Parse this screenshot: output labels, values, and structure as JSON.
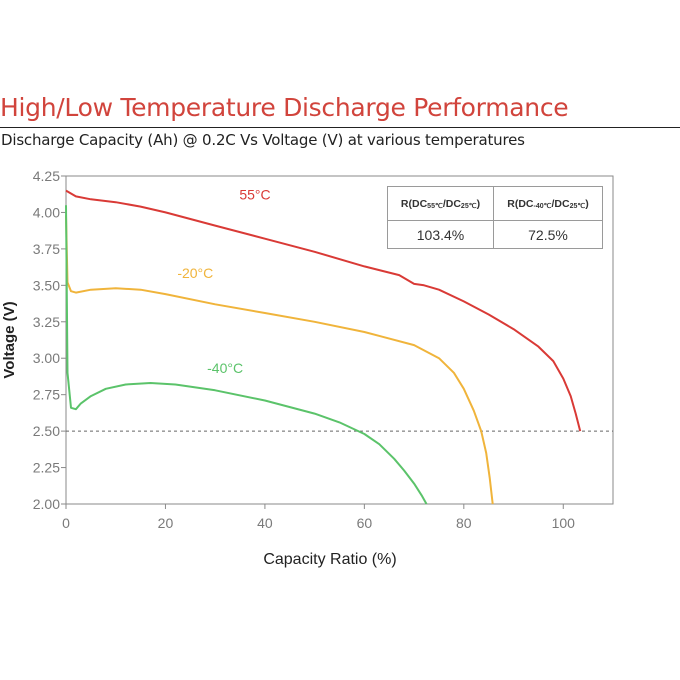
{
  "header": {
    "title": "High/Low Temperature Discharge Performance",
    "subtitle": "Discharge Capacity (Ah) @ 0.2C Vs Voltage (V) at various temperatures"
  },
  "ratio_table": {
    "headers": [
      {
        "pre": "R(DC",
        "sub1": "55℃",
        "mid": "/DC",
        "sub2": "25℃",
        "post": ")"
      },
      {
        "pre": "R(DC",
        "sub1": "-40℃",
        "mid": "/DC",
        "sub2": "25℃",
        "post": ")"
      }
    ],
    "values": [
      "103.4%",
      "72.5%"
    ]
  },
  "chart_data": {
    "type": "line",
    "xlabel": "Capacity Ratio (%)",
    "ylabel": "Voltage (V)",
    "xlim": [
      0,
      110
    ],
    "ylim": [
      2.0,
      4.25
    ],
    "xticks": [
      "0",
      "20",
      "40",
      "60",
      "80",
      "100"
    ],
    "yticks": [
      "2.00",
      "2.25",
      "2.50",
      "2.75",
      "3.00",
      "3.25",
      "3.50",
      "3.75",
      "4.00",
      "4.25"
    ],
    "grid": false,
    "cutoff_voltage": 2.5,
    "series": [
      {
        "name": "55°C",
        "color": "#d93a36",
        "x": [
          0,
          2,
          5,
          10,
          15,
          20,
          30,
          40,
          50,
          60,
          67,
          70,
          72,
          75,
          80,
          85,
          90,
          95,
          98,
          100,
          101.5,
          102.5,
          103.4
        ],
        "y": [
          4.15,
          4.11,
          4.09,
          4.07,
          4.04,
          4.0,
          3.91,
          3.82,
          3.73,
          3.63,
          3.57,
          3.51,
          3.5,
          3.47,
          3.39,
          3.3,
          3.2,
          3.08,
          2.98,
          2.86,
          2.74,
          2.62,
          2.5
        ]
      },
      {
        "name": "-20°C",
        "color": "#f0b43b",
        "x": [
          0,
          0.3,
          1,
          2,
          5,
          10,
          15,
          20,
          30,
          40,
          50,
          60,
          70,
          75,
          78,
          80,
          82,
          83.5,
          84.5,
          85.2,
          85.8
        ],
        "y": [
          3.98,
          3.52,
          3.46,
          3.45,
          3.47,
          3.48,
          3.47,
          3.44,
          3.37,
          3.31,
          3.25,
          3.18,
          3.09,
          3.0,
          2.9,
          2.79,
          2.64,
          2.5,
          2.35,
          2.18,
          2.0
        ]
      },
      {
        "name": "-40°C",
        "color": "#5bc36a",
        "x": [
          0,
          0.3,
          1,
          2,
          3,
          5,
          8,
          12,
          17,
          22,
          30,
          40,
          50,
          55,
          60,
          63,
          66,
          68,
          70,
          71.5,
          72.5
        ],
        "y": [
          4.05,
          2.9,
          2.66,
          2.65,
          2.69,
          2.74,
          2.79,
          2.82,
          2.83,
          2.82,
          2.78,
          2.71,
          2.62,
          2.56,
          2.48,
          2.41,
          2.31,
          2.23,
          2.14,
          2.06,
          2.0
        ]
      }
    ]
  }
}
